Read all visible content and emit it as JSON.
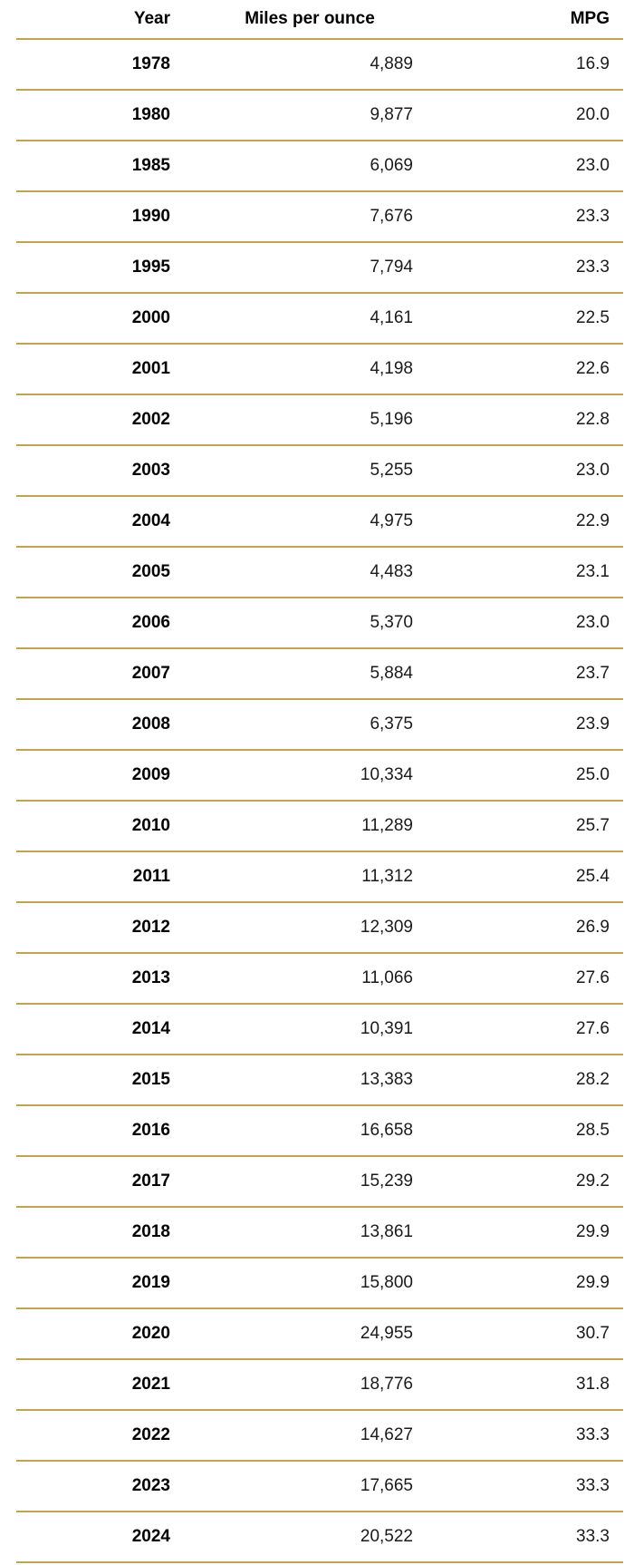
{
  "table": {
    "columns": [
      "Year",
      "Miles per ounce",
      "MPG"
    ],
    "rule_color": "#C2A159",
    "rows": [
      [
        "1978",
        "4,889",
        "16.9"
      ],
      [
        "1980",
        "9,877",
        "20.0"
      ],
      [
        "1985",
        "6,069",
        "23.0"
      ],
      [
        "1990",
        "7,676",
        "23.3"
      ],
      [
        "1995",
        "7,794",
        "23.3"
      ],
      [
        "2000",
        "4,161",
        "22.5"
      ],
      [
        "2001",
        "4,198",
        "22.6"
      ],
      [
        "2002",
        "5,196",
        "22.8"
      ],
      [
        "2003",
        "5,255",
        "23.0"
      ],
      [
        "2004",
        "4,975",
        "22.9"
      ],
      [
        "2005",
        "4,483",
        "23.1"
      ],
      [
        "2006",
        "5,370",
        "23.0"
      ],
      [
        "2007",
        "5,884",
        "23.7"
      ],
      [
        "2008",
        "6,375",
        "23.9"
      ],
      [
        "2009",
        "10,334",
        "25.0"
      ],
      [
        "2010",
        "11,289",
        "25.7"
      ],
      [
        "2011",
        "11,312",
        "25.4"
      ],
      [
        "2012",
        "12,309",
        "26.9"
      ],
      [
        "2013",
        "11,066",
        "27.6"
      ],
      [
        "2014",
        "10,391",
        "27.6"
      ],
      [
        "2015",
        "13,383",
        "28.2"
      ],
      [
        "2016",
        "16,658",
        "28.5"
      ],
      [
        "2017",
        "15,239",
        "29.2"
      ],
      [
        "2018",
        "13,861",
        "29.9"
      ],
      [
        "2019",
        "15,800",
        "29.9"
      ],
      [
        "2020",
        "24,955",
        "30.7"
      ],
      [
        "2021",
        "18,776",
        "31.8"
      ],
      [
        "2022",
        "14,627",
        "33.3"
      ],
      [
        "2023",
        "17,665",
        "33.3"
      ],
      [
        "2024",
        "20,522",
        "33.3"
      ]
    ]
  },
  "chart_data": {
    "type": "table",
    "title": "",
    "columns": [
      "Year",
      "Miles per ounce",
      "MPG"
    ],
    "rows": [
      [
        1978,
        4889,
        16.9
      ],
      [
        1980,
        9877,
        20.0
      ],
      [
        1985,
        6069,
        23.0
      ],
      [
        1990,
        7676,
        23.3
      ],
      [
        1995,
        7794,
        23.3
      ],
      [
        2000,
        4161,
        22.5
      ],
      [
        2001,
        4198,
        22.6
      ],
      [
        2002,
        5196,
        22.8
      ],
      [
        2003,
        5255,
        23.0
      ],
      [
        2004,
        4975,
        22.9
      ],
      [
        2005,
        4483,
        23.1
      ],
      [
        2006,
        5370,
        23.0
      ],
      [
        2007,
        5884,
        23.7
      ],
      [
        2008,
        6375,
        23.9
      ],
      [
        2009,
        10334,
        25.0
      ],
      [
        2010,
        11289,
        25.7
      ],
      [
        2011,
        11312,
        25.4
      ],
      [
        2012,
        12309,
        26.9
      ],
      [
        2013,
        11066,
        27.6
      ],
      [
        2014,
        10391,
        27.6
      ],
      [
        2015,
        13383,
        28.2
      ],
      [
        2016,
        16658,
        28.5
      ],
      [
        2017,
        15239,
        29.2
      ],
      [
        2018,
        13861,
        29.9
      ],
      [
        2019,
        15800,
        29.9
      ],
      [
        2020,
        24955,
        30.7
      ],
      [
        2021,
        18776,
        31.8
      ],
      [
        2022,
        14627,
        33.3
      ],
      [
        2023,
        17665,
        33.3
      ],
      [
        2024,
        20522,
        33.3
      ]
    ]
  }
}
